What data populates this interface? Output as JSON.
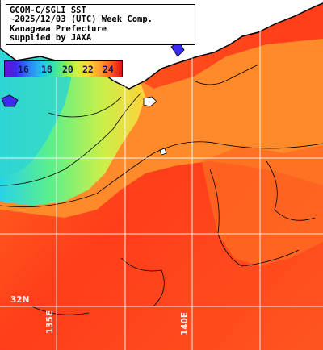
{
  "title": {
    "lines": [
      "GCOM-C/SGLI SST",
      "~2025/12/03 (UTC) Week Comp.",
      "Kanagawa Prefecture",
      "supplied by JAXA"
    ]
  },
  "colorbar": {
    "ticks": [
      "16",
      "18",
      "20",
      "22",
      "24"
    ],
    "colors": [
      "#6a0fd0",
      "#2e7cf6",
      "#24c6ee",
      "#7ef05a",
      "#ffd23a",
      "#ff9a2a",
      "#e61010"
    ]
  },
  "grid": {
    "latitude_label": "32N",
    "longitude_labels": [
      "135E",
      "140E"
    ]
  },
  "colors": {
    "land": "#ffffff",
    "warm_sea": "#ff3a1a",
    "coastal_sea": "#ffb23a",
    "cool_sea": "#3fe8a0",
    "gridline": "#ffffff"
  }
}
